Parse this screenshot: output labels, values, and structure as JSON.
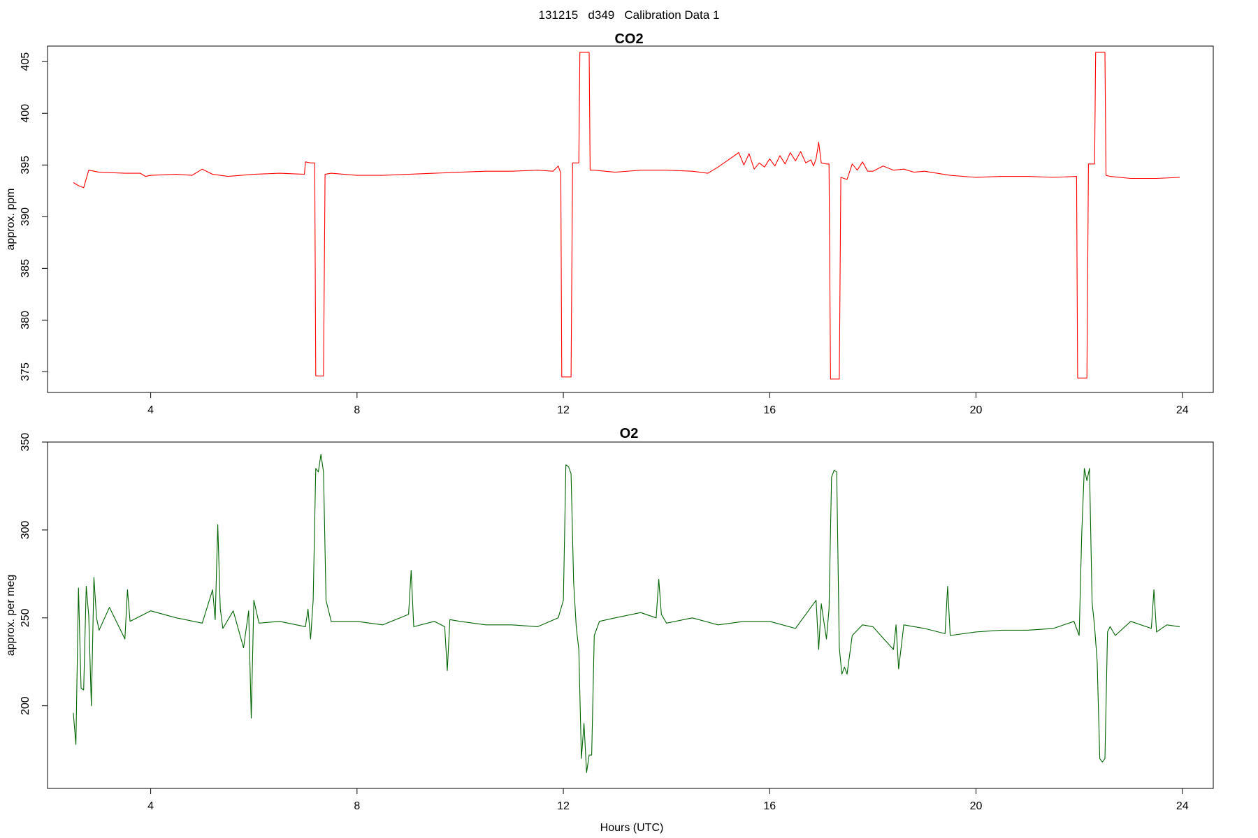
{
  "figure": {
    "suptitle": "131215   d349   Calibration Data 1"
  },
  "chart_data": [
    {
      "type": "line",
      "title": "CO2",
      "xlabel": "",
      "ylabel": "approx. ppm",
      "xlim": [
        2.0,
        24.6
      ],
      "ylim": [
        373,
        406.5
      ],
      "xticks": [
        4,
        8,
        12,
        16,
        20,
        24
      ],
      "yticks": [
        375,
        380,
        385,
        390,
        395,
        400,
        405
      ],
      "grid": false,
      "legend": "none",
      "color": "#ff0000",
      "series": [
        {
          "x": [
            2.5,
            2.6,
            2.7,
            2.8,
            3.0,
            3.5,
            3.8,
            3.9,
            4.0,
            4.5,
            4.8,
            5.0,
            5.2,
            5.5,
            6.0,
            6.5,
            6.98,
            7.0,
            7.1,
            7.18,
            7.2,
            7.35,
            7.38,
            7.5,
            8.0,
            8.5,
            9.0,
            9.5,
            10.0,
            10.5,
            11.0,
            11.5,
            11.8,
            11.9,
            11.95,
            11.97,
            12.0,
            12.15,
            12.18,
            12.2,
            12.3,
            12.32,
            12.4,
            12.5,
            12.52,
            12.6,
            13.0,
            13.5,
            14.0,
            14.5,
            14.8,
            15.0,
            15.2,
            15.4,
            15.5,
            15.6,
            15.7,
            15.8,
            15.9,
            16.0,
            16.1,
            16.2,
            16.3,
            16.4,
            16.5,
            16.6,
            16.7,
            16.8,
            16.85,
            16.9,
            16.95,
            17.0,
            17.1,
            17.15,
            17.18,
            17.2,
            17.35,
            17.38,
            17.5,
            17.6,
            17.7,
            17.8,
            17.9,
            18.0,
            18.2,
            18.4,
            18.6,
            18.8,
            19.0,
            19.5,
            20.0,
            20.5,
            21.0,
            21.5,
            21.95,
            21.97,
            22.0,
            22.15,
            22.18,
            22.2,
            22.3,
            22.32,
            22.4,
            22.5,
            22.52,
            22.6,
            23.0,
            23.5,
            23.95
          ],
          "y": [
            393.3,
            393.0,
            392.8,
            394.5,
            394.3,
            394.2,
            394.2,
            393.9,
            394.0,
            394.1,
            394.0,
            394.6,
            394.1,
            393.9,
            394.1,
            394.2,
            394.1,
            395.3,
            395.2,
            395.2,
            374.6,
            374.6,
            394.1,
            394.2,
            394.0,
            394.0,
            394.1,
            394.2,
            394.3,
            394.4,
            394.4,
            394.5,
            394.4,
            394.9,
            394.2,
            374.5,
            374.5,
            374.5,
            395.2,
            395.2,
            395.2,
            405.9,
            405.9,
            405.9,
            394.5,
            394.5,
            394.3,
            394.5,
            394.5,
            394.4,
            394.2,
            394.8,
            395.5,
            396.2,
            395.0,
            396.1,
            394.6,
            395.2,
            394.8,
            395.6,
            394.9,
            395.9,
            395.1,
            396.2,
            395.4,
            396.3,
            395.2,
            395.5,
            394.9,
            395.6,
            397.2,
            395.2,
            395.1,
            395.1,
            374.3,
            374.3,
            374.3,
            393.8,
            393.6,
            395.1,
            394.5,
            395.3,
            394.4,
            394.4,
            394.9,
            394.5,
            394.6,
            394.3,
            394.4,
            394.0,
            393.8,
            393.9,
            393.9,
            393.8,
            393.9,
            374.4,
            374.4,
            374.4,
            395.1,
            395.1,
            395.1,
            405.9,
            405.9,
            405.9,
            394.0,
            393.9,
            393.7,
            393.7,
            393.8
          ]
        }
      ]
    },
    {
      "type": "line",
      "title": "O2",
      "xlabel": "Hours (UTC)",
      "ylabel": "approx. per meg",
      "xlim": [
        2.0,
        24.6
      ],
      "ylim": [
        153,
        350
      ],
      "xticks": [
        4,
        8,
        12,
        16,
        20,
        24
      ],
      "yticks": [
        200,
        250,
        300,
        350
      ],
      "grid": false,
      "legend": "none",
      "color": "#006400",
      "series": [
        {
          "x": [
            2.5,
            2.55,
            2.6,
            2.65,
            2.7,
            2.75,
            2.8,
            2.85,
            2.9,
            2.95,
            3.0,
            3.2,
            3.5,
            3.55,
            3.6,
            4.0,
            4.5,
            5.0,
            5.2,
            5.25,
            5.3,
            5.35,
            5.4,
            5.6,
            5.8,
            5.9,
            5.95,
            6.0,
            6.1,
            6.5,
            7.0,
            7.05,
            7.1,
            7.15,
            7.2,
            7.25,
            7.3,
            7.35,
            7.4,
            7.5,
            8.0,
            8.5,
            9.0,
            9.05,
            9.1,
            9.5,
            9.7,
            9.75,
            9.8,
            10.0,
            10.5,
            11.0,
            11.5,
            11.9,
            12.0,
            12.05,
            12.1,
            12.15,
            12.2,
            12.25,
            12.3,
            12.35,
            12.4,
            12.45,
            12.5,
            12.55,
            12.6,
            12.7,
            13.0,
            13.5,
            13.8,
            13.85,
            13.9,
            14.0,
            14.5,
            15.0,
            15.5,
            16.0,
            16.5,
            16.9,
            16.95,
            17.0,
            17.1,
            17.15,
            17.2,
            17.25,
            17.3,
            17.35,
            17.4,
            17.45,
            17.5,
            17.6,
            17.8,
            18.0,
            18.4,
            18.45,
            18.5,
            18.6,
            19.0,
            19.4,
            19.45,
            19.5,
            20.0,
            20.5,
            21.0,
            21.5,
            21.9,
            22.0,
            22.05,
            22.1,
            22.15,
            22.2,
            22.25,
            22.3,
            22.35,
            22.4,
            22.45,
            22.5,
            22.55,
            22.6,
            22.7,
            23.0,
            23.4,
            23.45,
            23.5,
            23.7,
            23.95
          ],
          "y": [
            196,
            178,
            267,
            210,
            209,
            268,
            251,
            200,
            273,
            250,
            243,
            256,
            238,
            266,
            248,
            254,
            250,
            247,
            266,
            249,
            303,
            255,
            244,
            254,
            233,
            254,
            193,
            260,
            247,
            248,
            245,
            255,
            238,
            260,
            335,
            333,
            343,
            333,
            260,
            248,
            248,
            246,
            252,
            277,
            245,
            248,
            245,
            220,
            249,
            248,
            246,
            246,
            245,
            250,
            260,
            337,
            336,
            332,
            270,
            245,
            232,
            170,
            190,
            162,
            172,
            172,
            240,
            248,
            250,
            253,
            250,
            272,
            252,
            247,
            250,
            246,
            248,
            248,
            244,
            260,
            232,
            258,
            238,
            255,
            330,
            334,
            333,
            233,
            218,
            222,
            218,
            240,
            246,
            245,
            232,
            246,
            221,
            246,
            244,
            241,
            268,
            240,
            242,
            243,
            243,
            244,
            248,
            240,
            298,
            335,
            328,
            335,
            259,
            245,
            225,
            170,
            168,
            170,
            242,
            245,
            240,
            248,
            244,
            266,
            242,
            246,
            245
          ]
        }
      ]
    }
  ]
}
